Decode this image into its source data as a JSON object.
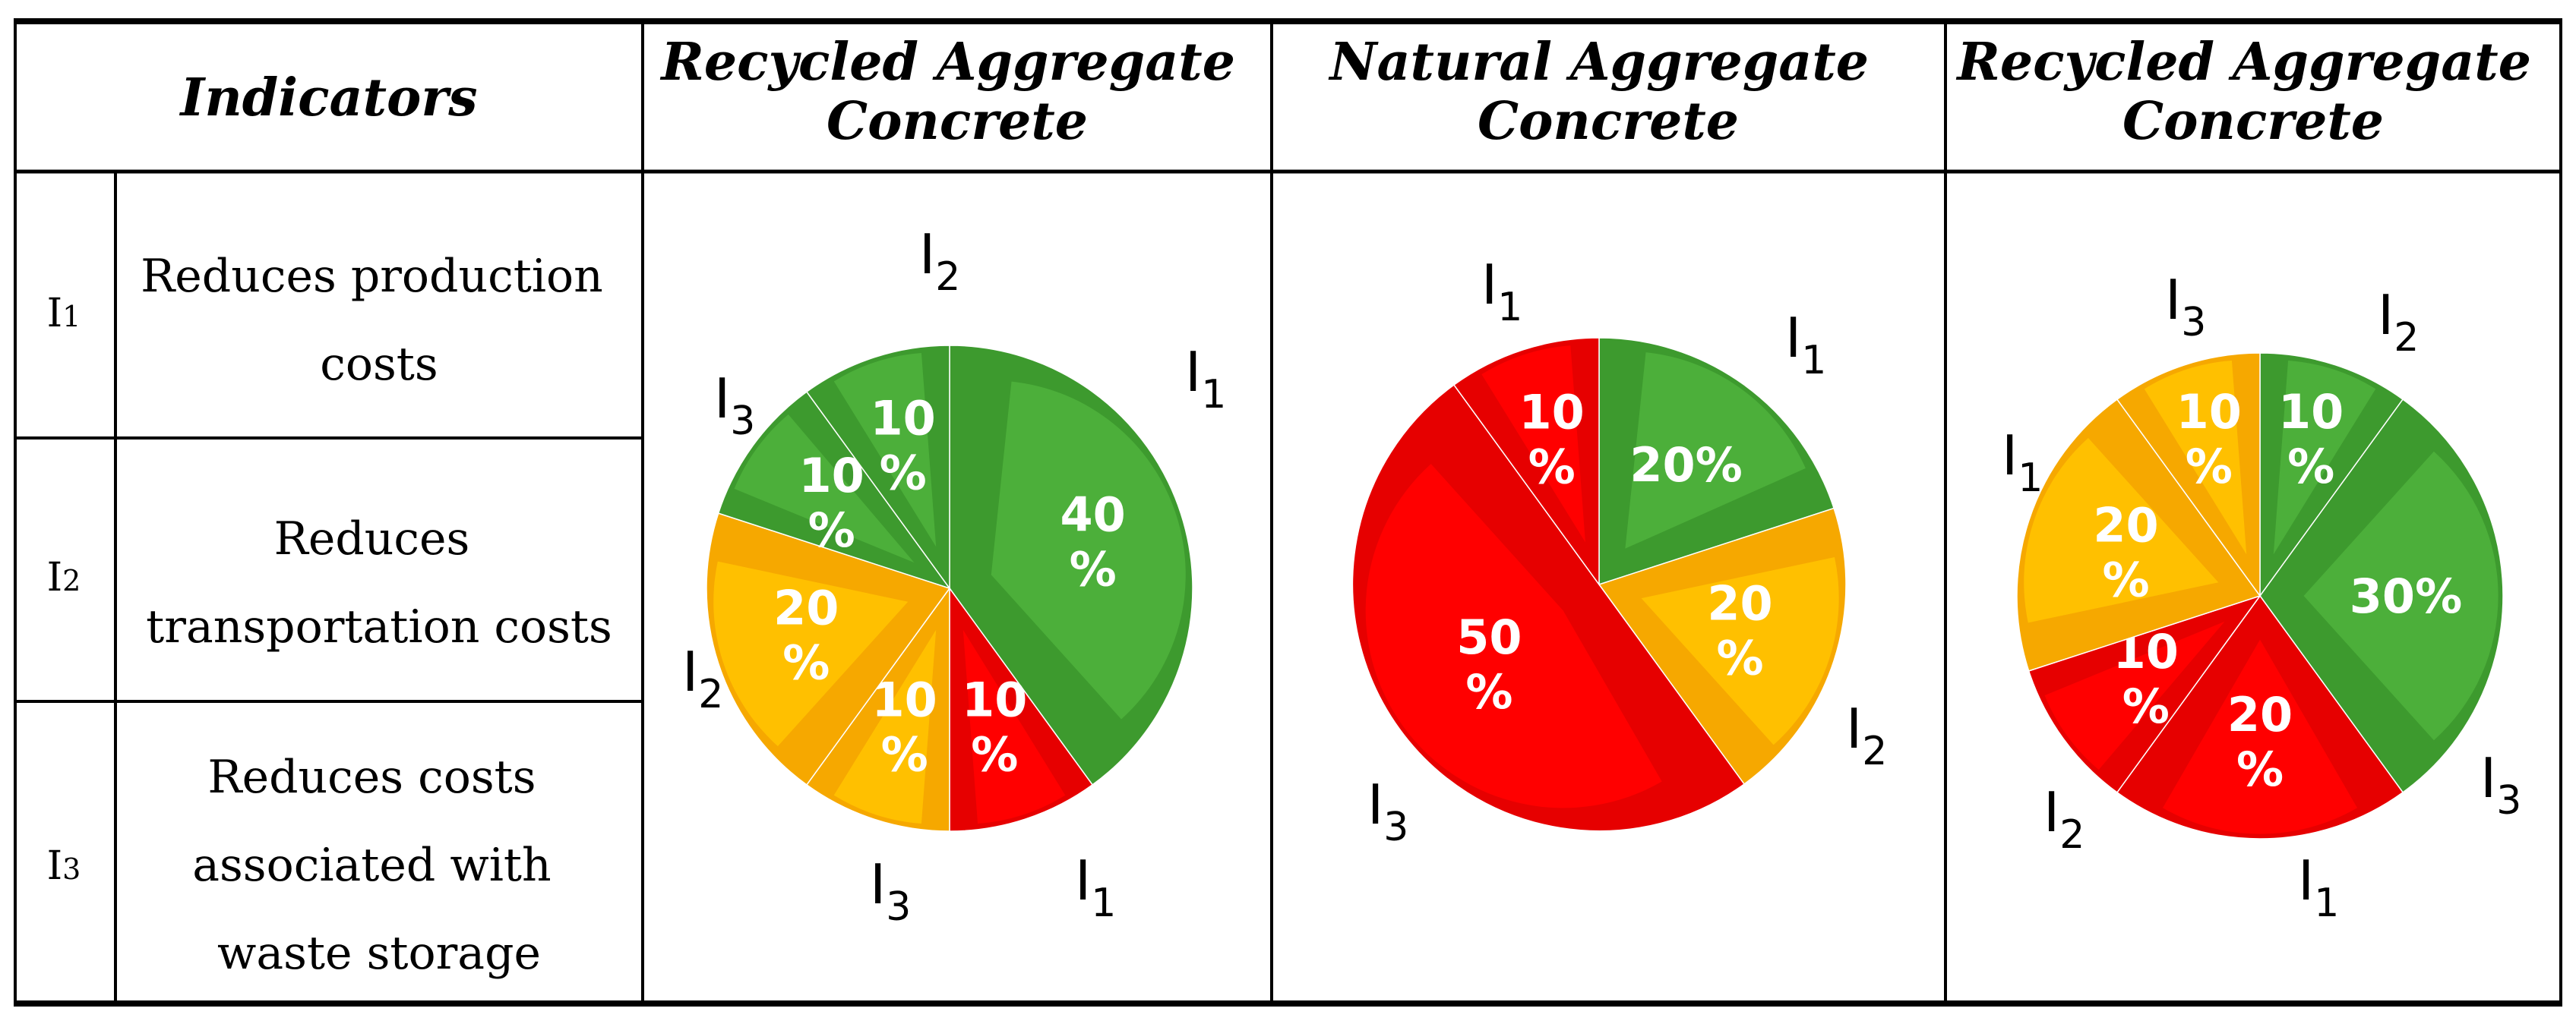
{
  "table": {
    "header": {
      "indicators": "Indicators",
      "col1": [
        "Recycled Aggregate",
        "Concrete"
      ],
      "col2": [
        "Natural Aggregate",
        "Concrete"
      ],
      "col3": [
        "Recycled Aggregate",
        "Concrete"
      ]
    },
    "rows": [
      {
        "index_main": "I",
        "index_sub": "1",
        "lines": [
          "Reduces production",
          "costs"
        ]
      },
      {
        "index_main": "I",
        "index_sub": "2",
        "lines": [
          "Reduces",
          "transportation costs"
        ]
      },
      {
        "index_main": "I",
        "index_sub": "3",
        "lines": [
          "Reduces costs",
          "associated with",
          "waste storage"
        ]
      }
    ]
  },
  "colors": {
    "green": "#4caf3a",
    "green_dark": "#3d9a2e",
    "yellow": "#ffc000",
    "yellow_dark": "#f6a800",
    "red": "#ff0000",
    "red_dark": "#e60000"
  },
  "chart_data": [
    {
      "type": "pie",
      "title": "Recycled Aggregate Concrete",
      "slices": [
        {
          "value": 40,
          "color": "green",
          "label": [
            "40",
            "%"
          ],
          "outer_main": "I",
          "outer_sub": "1"
        },
        {
          "value": 10,
          "color": "red",
          "label": [
            "10",
            "%"
          ],
          "outer_main": "I",
          "outer_sub": "1"
        },
        {
          "value": 10,
          "color": "yellow",
          "label": [
            "10",
            "%"
          ],
          "outer_main": "I",
          "outer_sub": "3"
        },
        {
          "value": 20,
          "color": "yellow",
          "label": [
            "20",
            "%"
          ],
          "outer_main": "I",
          "outer_sub": "2"
        },
        {
          "value": 10,
          "color": "green",
          "label": [
            "10",
            "%"
          ],
          "outer_main": "I",
          "outer_sub": "3"
        },
        {
          "value": 10,
          "color": "green",
          "label": [
            "10",
            "%"
          ],
          "outer_main": "I",
          "outer_sub": "2"
        }
      ]
    },
    {
      "type": "pie",
      "title": "Natural Aggregate Concrete",
      "slices": [
        {
          "value": 20,
          "color": "green",
          "label": [
            "20%"
          ],
          "outer_main": "I",
          "outer_sub": "1"
        },
        {
          "value": 20,
          "color": "yellow",
          "label": [
            "20",
            "%"
          ],
          "outer_main": "I",
          "outer_sub": "2"
        },
        {
          "value": 50,
          "color": "red",
          "label": [
            "50",
            "%"
          ],
          "outer_main": "I",
          "outer_sub": "3"
        },
        {
          "value": 10,
          "color": "red",
          "label": [
            "10",
            "%"
          ],
          "outer_main": "I",
          "outer_sub": "1"
        }
      ]
    },
    {
      "type": "pie",
      "title": "Recycled Aggregate Concrete",
      "slices": [
        {
          "value": 10,
          "color": "green",
          "label": [
            "10",
            "%"
          ],
          "outer_main": "I",
          "outer_sub": "2"
        },
        {
          "value": 30,
          "color": "green",
          "label": [
            "30%"
          ],
          "outer_main": "I",
          "outer_sub": "3"
        },
        {
          "value": 20,
          "color": "red",
          "label": [
            "20",
            "%"
          ],
          "outer_main": "I",
          "outer_sub": "1"
        },
        {
          "value": 10,
          "color": "red",
          "label": [
            "10",
            "%"
          ],
          "outer_main": "I",
          "outer_sub": "2"
        },
        {
          "value": 20,
          "color": "yellow",
          "label": [
            "20",
            "%"
          ],
          "outer_main": "I",
          "outer_sub": "1"
        },
        {
          "value": 10,
          "color": "yellow",
          "label": [
            "10",
            "%"
          ],
          "outer_main": "I",
          "outer_sub": "3"
        }
      ]
    }
  ]
}
